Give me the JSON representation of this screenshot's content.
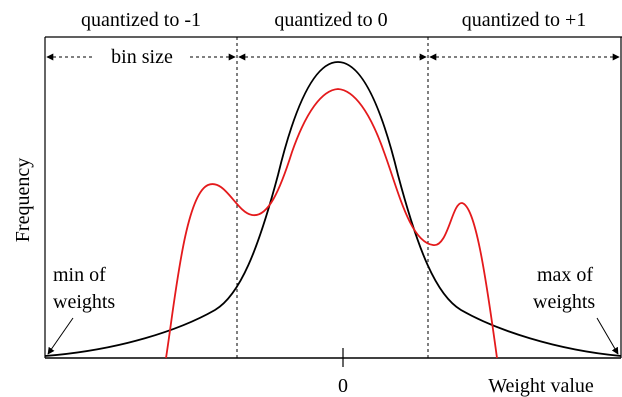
{
  "labels": {
    "bin_left": "quantized to -1",
    "bin_center": "quantized to 0",
    "bin_right": "quantized to +1",
    "bin_size": "bin size",
    "y_axis": "Frequency",
    "x_axis": "Weight value",
    "zero_tick": "0",
    "min_line1": "min of",
    "min_line2": "weights",
    "max_line1": "max of",
    "max_line2": "weights"
  },
  "colors": {
    "axis": "#000000",
    "original_distribution": "#000000",
    "quantized_distribution": "#e41a1c",
    "boundary": "#000000"
  }
}
